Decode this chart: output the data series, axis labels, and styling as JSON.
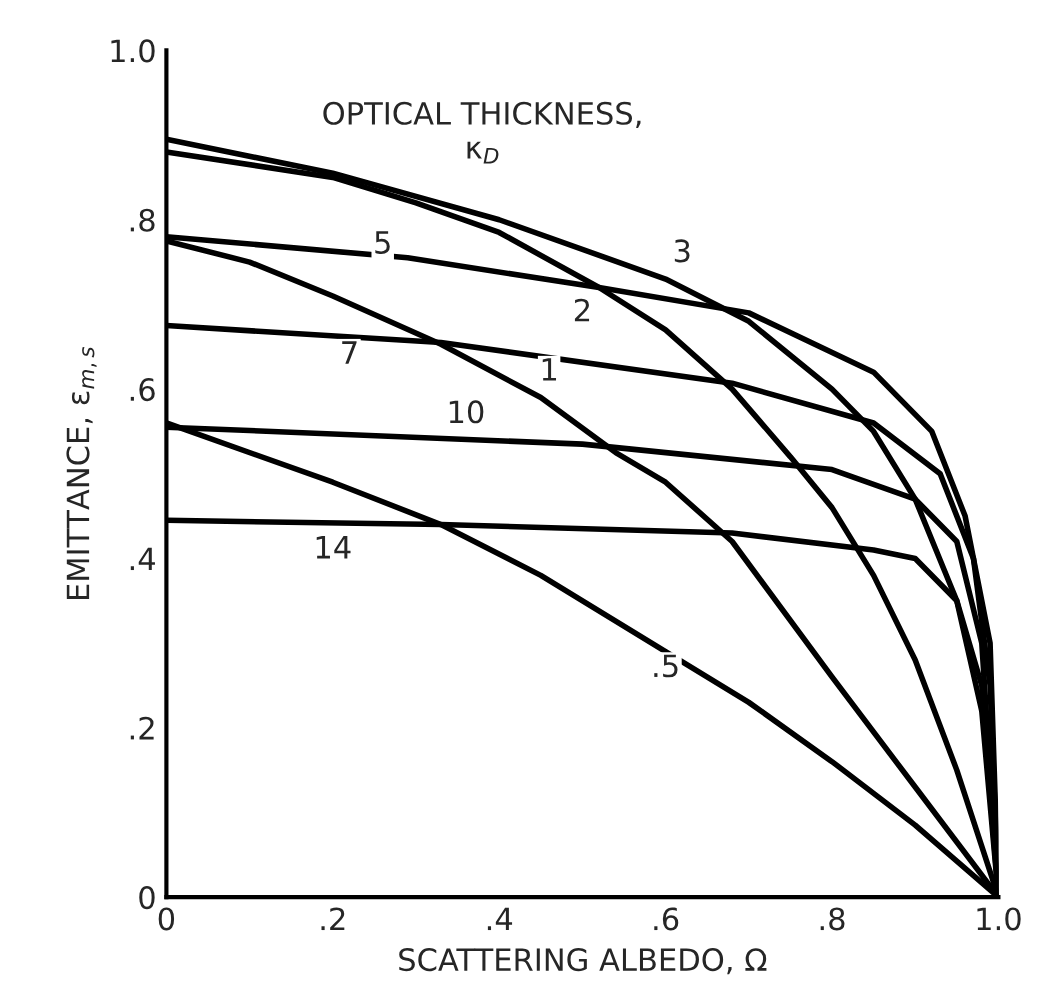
{
  "chart_data": {
    "type": "line",
    "xlabel": "SCATTERING ALBEDO, Ω",
    "ylabel": "EMITTANCE, ε$_{m,s}$",
    "xlim": [
      0,
      1.0
    ],
    "ylim": [
      0,
      1.0
    ],
    "xticks": [
      0,
      {
        "value": 0.2,
        "label": ".2"
      },
      {
        "value": 0.4,
        "label": ".4"
      },
      {
        "value": 0.6,
        "label": ".6"
      },
      {
        "value": 0.8,
        "label": ".8"
      },
      {
        "value": 1.0,
        "label": "1.0"
      }
    ],
    "yticks": [
      0,
      {
        "value": 0.2,
        "label": ".2"
      },
      {
        "value": 0.4,
        "label": ".4"
      },
      {
        "value": 0.6,
        "label": ".6"
      },
      {
        "value": 0.8,
        "label": ".8"
      },
      {
        "value": 1.0,
        "label": "1.0"
      }
    ],
    "grid": false,
    "legend": false,
    "marker": "none",
    "line_style": "solid",
    "series": [
      {
        "color": "#000000",
        "x": [
          0,
          0.2,
          0.4,
          0.6,
          0.7,
          0.8,
          0.85,
          0.9,
          0.95,
          0.98,
          1.0
        ],
        "values": [
          0.895,
          0.855,
          0.8,
          0.73,
          0.68,
          0.6,
          0.55,
          0.47,
          0.35,
          0.22,
          0
        ]
      },
      {
        "color": "#000000",
        "x": [
          0,
          0.2,
          0.3,
          0.4,
          0.52,
          0.6,
          0.68,
          0.75,
          0.8,
          0.85,
          0.9,
          0.95,
          1.0
        ],
        "values": [
          0.88,
          0.85,
          0.82,
          0.785,
          0.72,
          0.67,
          0.6,
          0.52,
          0.46,
          0.38,
          0.28,
          0.15,
          0
        ]
      },
      {
        "color": "#000000",
        "x": [
          0,
          0.29,
          0.52,
          0.7,
          0.85,
          0.92,
          0.96,
          0.99,
          1.0
        ],
        "values": [
          0.78,
          0.755,
          0.72,
          0.69,
          0.62,
          0.55,
          0.45,
          0.3,
          0
        ]
      },
      {
        "color": "#000000",
        "x": [
          0,
          0.1,
          0.2,
          0.33,
          0.45,
          0.54,
          0.6,
          0.68,
          0.8,
          0.9,
          1.0
        ],
        "values": [
          0.775,
          0.75,
          0.71,
          0.653,
          0.59,
          0.525,
          0.49,
          0.42,
          0.26,
          0.13,
          0
        ]
      },
      {
        "color": "#000000",
        "x": [
          0,
          0.33,
          0.68,
          0.85,
          0.93,
          0.97,
          0.99,
          1.0
        ],
        "values": [
          0.675,
          0.655,
          0.607,
          0.56,
          0.5,
          0.4,
          0.25,
          0
        ]
      },
      {
        "color": "#000000",
        "x": [
          0,
          0.5,
          0.8,
          0.9,
          0.95,
          0.98,
          1.0
        ],
        "values": [
          0.555,
          0.535,
          0.505,
          0.47,
          0.42,
          0.3,
          0
        ]
      },
      {
        "color": "#000000",
        "x": [
          0,
          0.33,
          0.68,
          0.85,
          0.9,
          0.95,
          0.98,
          1.0
        ],
        "values": [
          0.445,
          0.44,
          0.43,
          0.41,
          0.4,
          0.35,
          0.25,
          0
        ]
      },
      {
        "color": "#000000",
        "x": [
          0,
          0.2,
          0.33,
          0.45,
          0.6,
          0.7,
          0.8,
          0.9,
          1.0
        ],
        "values": [
          0.56,
          0.49,
          0.44,
          0.38,
          0.29,
          0.23,
          0.16,
          0.085,
          0
        ]
      }
    ],
    "annotations": [
      "OPTICAL THICKNESS,\nκ$_{D}$",
      {
        "text": "3",
        "x": 0.62,
        "y": 0.76
      },
      {
        "text": "2",
        "x": 0.5,
        "y": 0.69
      },
      {
        "text": "5",
        "x": 0.26,
        "y": 0.77
      },
      {
        "text": "1",
        "x": 0.46,
        "y": 0.62
      },
      {
        "text": "7",
        "x": 0.22,
        "y": 0.64
      },
      {
        "text": "10",
        "x": 0.36,
        "y": 0.57
      },
      {
        "text": "14",
        "x": 0.2,
        "y": 0.41
      },
      {
        "text": ".5",
        "x": 0.6,
        "y": 0.27
      }
    ]
  }
}
